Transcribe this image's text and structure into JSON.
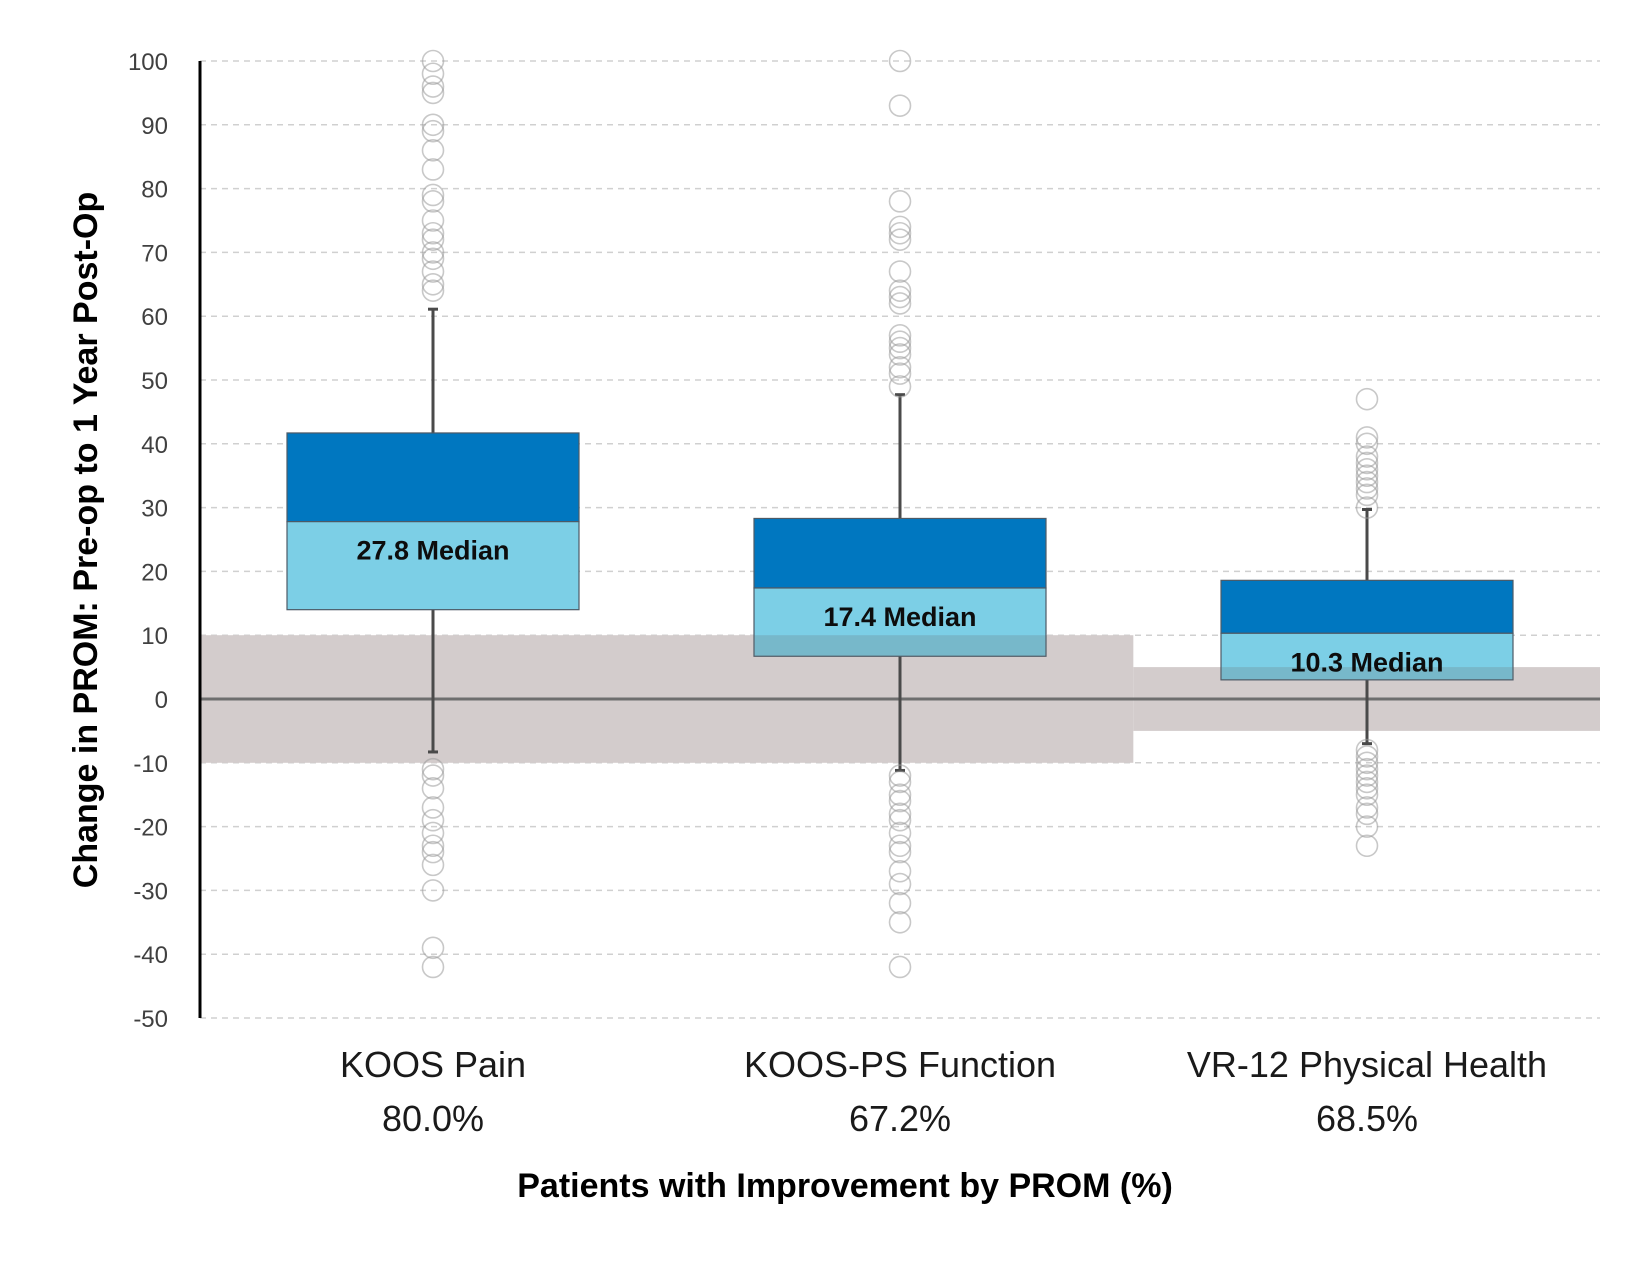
{
  "chart_data": {
    "type": "box",
    "title": "",
    "xlabel": "Patients with Improvement by PROM (%)",
    "ylabel": "Change in PROM: Pre-op to 1 Year Post-Op",
    "ylim": [
      -50,
      100
    ],
    "yticks": [
      100,
      90,
      80,
      70,
      60,
      50,
      40,
      30,
      20,
      10,
      0,
      -10,
      -20,
      -30,
      -40,
      -50
    ],
    "grid": true,
    "colors": {
      "upper_box": "#0077C0",
      "lower_box": "#7CCFE6",
      "mcid_band": "#D3CCCC",
      "whisker": "#4A4A4A",
      "outlier": "#9A9A9A",
      "grid": "#D0D0D0"
    },
    "mcid_bands": [
      {
        "from_category": 0,
        "to_category": 1,
        "low": -10,
        "high": 10
      },
      {
        "from_category": 2,
        "to_category": 2,
        "low": -5,
        "high": 5
      }
    ],
    "series": [
      {
        "name": "KOOS Pain",
        "percent": "80.0%",
        "median_label": "27.8 Median",
        "q1": 14,
        "median": 27.8,
        "q3": 41.7,
        "whisker_low": -8.3,
        "whisker_high": 61.1,
        "outliers": [
          100,
          98,
          96,
          95,
          90,
          89,
          86,
          83,
          79,
          78,
          75,
          73,
          72,
          70,
          69,
          67,
          65,
          64,
          -11,
          -12,
          -14,
          -17,
          -19,
          -21,
          -23,
          -24,
          -26,
          -30,
          -39,
          -42
        ]
      },
      {
        "name": "KOOS-PS Function",
        "percent": "67.2%",
        "median_label": "17.4 Median",
        "q1": 6.7,
        "median": 17.4,
        "q3": 28.3,
        "whisker_low": -11.2,
        "whisker_high": 47.7,
        "outliers": [
          100,
          93,
          78,
          74,
          73,
          72,
          67,
          64,
          63,
          62,
          57,
          56,
          55,
          54,
          52,
          51,
          49,
          -12,
          -13,
          -15,
          -16,
          -18,
          -19,
          -21,
          -23,
          -24,
          -27,
          -29,
          -32,
          -35,
          -42
        ]
      },
      {
        "name": "VR-12 Physical Health",
        "percent": "68.5%",
        "median_label": "10.3 Median",
        "q1": 3,
        "median": 10.3,
        "q3": 18.6,
        "whisker_low": -7,
        "whisker_high": 29.7,
        "outliers": [
          47,
          41,
          40,
          38,
          37,
          36,
          35,
          34,
          33,
          32,
          30,
          -8,
          -9,
          -10,
          -11,
          -12,
          -13,
          -14,
          -15,
          -17,
          -18,
          -20,
          -23
        ]
      }
    ]
  }
}
